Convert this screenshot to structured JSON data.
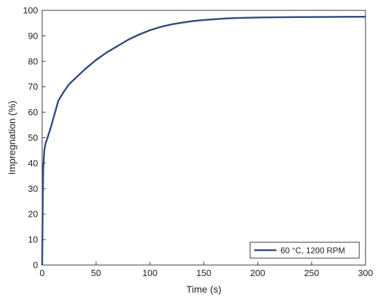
{
  "chart_data": {
    "type": "line",
    "xlabel": "Time (s)",
    "ylabel": "Impregnation (%)",
    "xlim": [
      0,
      300
    ],
    "ylim": [
      0,
      100
    ],
    "xticks": [
      "0",
      "50",
      "100",
      "150",
      "200",
      "250",
      "300"
    ],
    "yticks": [
      "0",
      "10",
      "20",
      "30",
      "40",
      "50",
      "60",
      "70",
      "80",
      "90",
      "100"
    ],
    "grid": false,
    "legend_position": "bottom-right",
    "series": [
      {
        "name": "60 °C, 1200 RPM",
        "color": "#2e4a7d",
        "x": [
          0,
          0.5,
          1,
          2,
          3,
          5,
          8,
          10,
          12,
          15,
          20,
          25,
          30,
          40,
          50,
          60,
          70,
          80,
          90,
          100,
          110,
          120,
          130,
          140,
          150,
          160,
          170,
          180,
          190,
          200,
          220,
          240,
          260,
          280,
          300
        ],
        "y": [
          0,
          22,
          38,
          45,
          47.5,
          50,
          54,
          57,
          60,
          64.5,
          68,
          71,
          73,
          77,
          80.5,
          83.5,
          86,
          88.5,
          90.5,
          92.2,
          93.5,
          94.5,
          95.2,
          95.8,
          96.2,
          96.5,
          96.8,
          97,
          97.1,
          97.2,
          97.3,
          97.35,
          97.4,
          97.45,
          97.5
        ]
      }
    ]
  }
}
